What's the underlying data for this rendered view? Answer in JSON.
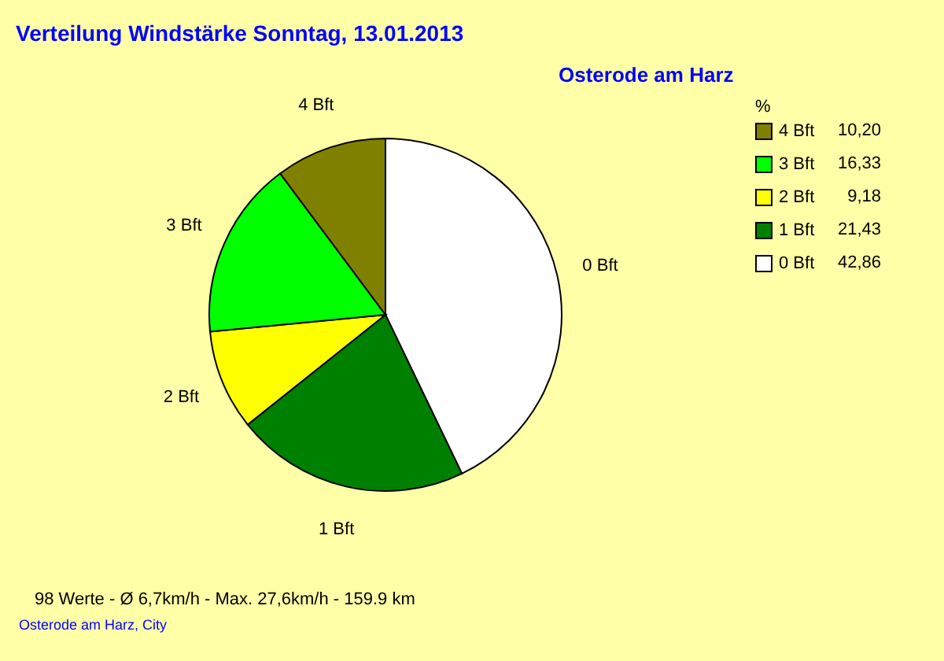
{
  "chart_data": {
    "type": "pie",
    "title": "Verteilung Windstärke  Sonntag, 13.01.2013",
    "subtitle": "Osterode am Harz",
    "categories": [
      "0 Bft",
      "1 Bft",
      "2 Bft",
      "3 Bft",
      "4 Bft"
    ],
    "values": [
      42.86,
      21.43,
      9.18,
      16.33,
      10.2
    ],
    "value_labels": [
      "42,86",
      "21,43",
      "9,18",
      "16,33",
      "10,20"
    ],
    "colors": [
      "#ffffff",
      "#008000",
      "#ffff00",
      "#00ff00",
      "#808000"
    ],
    "legend_title": "%",
    "legend": "top right",
    "annotations": [
      "98 Werte   -   Ø 6,7km/h  -  Max. 27,6km/h   -   159.9 km",
      "Osterode am Harz, City"
    ]
  }
}
